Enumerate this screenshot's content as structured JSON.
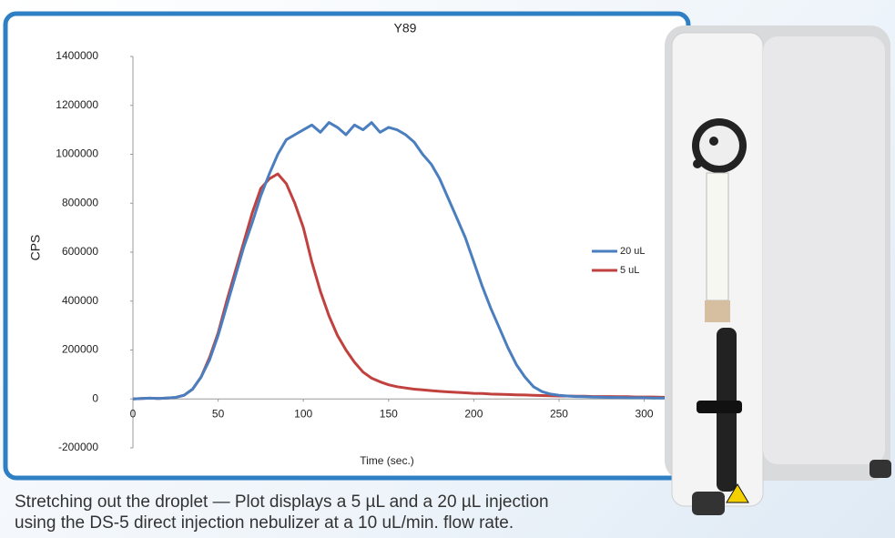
{
  "chart_data": {
    "type": "line",
    "title": "Y89",
    "x_label": "Time (sec.)",
    "y_label": "CPS",
    "x": [
      0,
      5,
      10,
      15,
      20,
      25,
      30,
      35,
      40,
      45,
      50,
      55,
      60,
      65,
      70,
      75,
      80,
      85,
      90,
      95,
      100,
      105,
      110,
      115,
      120,
      125,
      130,
      135,
      140,
      145,
      150,
      155,
      160,
      165,
      170,
      175,
      180,
      185,
      190,
      195,
      200,
      205,
      210,
      215,
      220,
      225,
      230,
      235,
      240,
      245,
      250,
      255,
      260,
      265,
      270,
      275,
      280,
      285,
      290,
      295,
      300,
      305,
      310,
      315,
      320
    ],
    "series": [
      {
        "name": "20 uL",
        "color": "#4a7ebf",
        "values": [
          0,
          2000,
          3000,
          2000,
          4000,
          6000,
          15000,
          40000,
          90000,
          160000,
          260000,
          380000,
          500000,
          620000,
          720000,
          830000,
          920000,
          1000000,
          1060000,
          1080000,
          1100000,
          1120000,
          1090000,
          1130000,
          1110000,
          1080000,
          1120000,
          1100000,
          1130000,
          1090000,
          1110000,
          1100000,
          1080000,
          1050000,
          1000000,
          960000,
          900000,
          820000,
          740000,
          660000,
          560000,
          460000,
          370000,
          290000,
          210000,
          140000,
          90000,
          50000,
          30000,
          20000,
          15000,
          12000,
          10000,
          9000,
          8000,
          7000,
          6000,
          6000,
          5000,
          5000,
          5000,
          4000,
          4000,
          4000,
          4000
        ]
      },
      {
        "name": "5 uL",
        "color": "#c0413e",
        "values": [
          0,
          2000,
          3000,
          2000,
          4000,
          6000,
          15000,
          40000,
          90000,
          170000,
          270000,
          400000,
          520000,
          640000,
          760000,
          860000,
          900000,
          920000,
          880000,
          800000,
          700000,
          560000,
          440000,
          340000,
          260000,
          200000,
          150000,
          110000,
          85000,
          70000,
          58000,
          50000,
          45000,
          40000,
          37000,
          34000,
          31000,
          29000,
          27000,
          25000,
          23000,
          22000,
          20000,
          19000,
          18000,
          17000,
          16000,
          15000,
          14000,
          13000,
          12000,
          12000,
          11000,
          11000,
          10000,
          10000,
          10000,
          9000,
          9000,
          8000,
          8000,
          8000,
          7000,
          7000,
          7000
        ]
      }
    ],
    "xlim": [
      0,
      320
    ],
    "xticks": [
      0,
      50,
      100,
      150,
      200,
      250,
      300
    ],
    "ylim": [
      -200000,
      1400000
    ],
    "yticks": [
      -200000,
      0,
      200000,
      400000,
      600000,
      800000,
      1000000,
      1200000,
      1400000
    ],
    "legend": "right"
  },
  "caption": [
    "Stretching out the droplet — Plot displays a 5 µL and a 20 µL injection",
    "using the DS-5 direct injection nebulizer at a 10 uL/min. flow rate."
  ]
}
